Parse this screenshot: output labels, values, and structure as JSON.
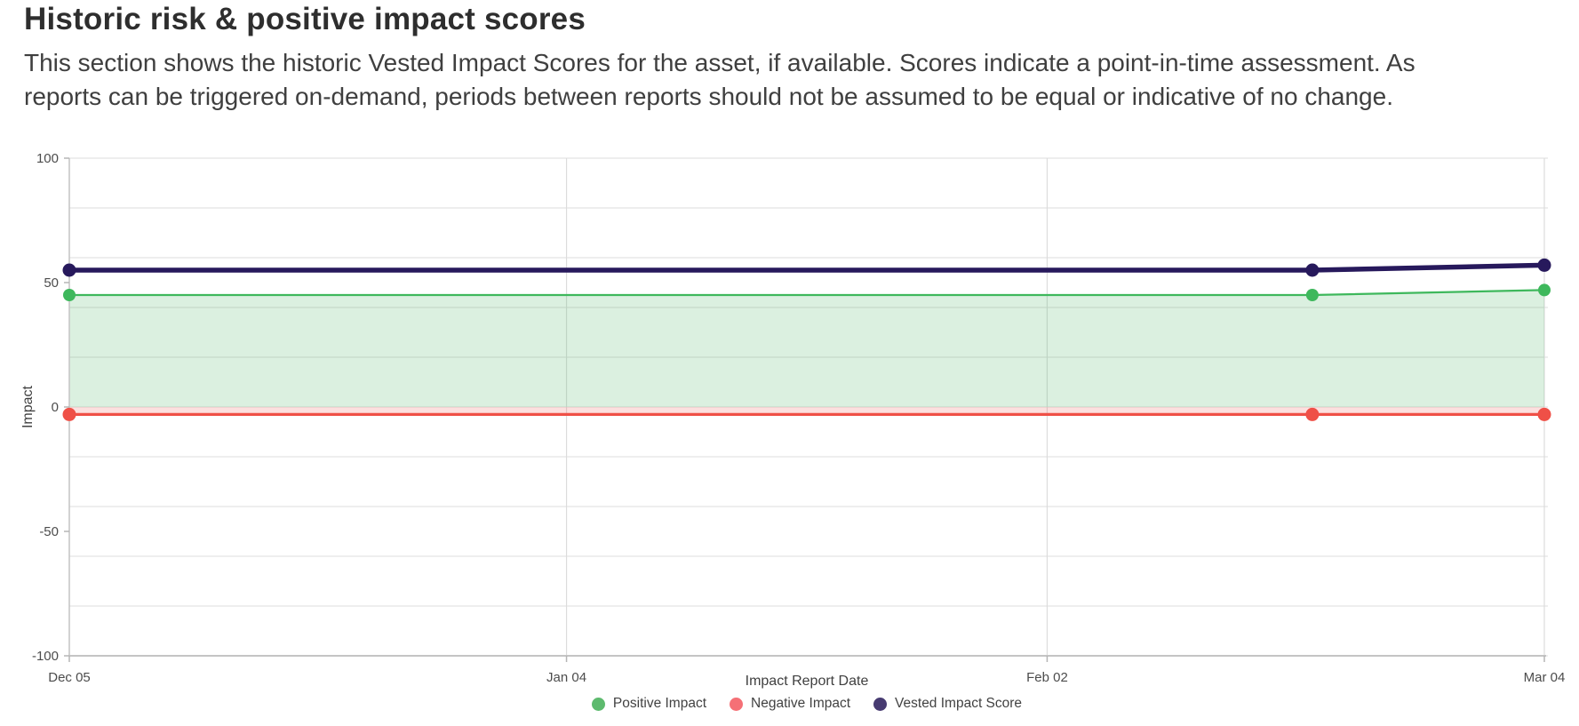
{
  "header": {
    "title": "Historic risk & positive impact scores",
    "description_line1": "This section shows the historic Vested Impact Scores for the asset, if available. Scores indicate a point-in-time assessment. As",
    "description_line2": "reports can be triggered on-demand, periods between reports should not be assumed to be equal or indicative of no change."
  },
  "colors": {
    "background": "#ffffff",
    "title_text": "#2e2e2e",
    "body_text": "#3f3f3f",
    "axis_text": "#4c4c4c",
    "axis_title_text": "#3f3f3f",
    "grid_horizontal": "#e4e4e4",
    "grid_vertical": "#dcdcdc",
    "axis_line": "#c4c4c4",
    "tick_mark": "#b5b5b5"
  },
  "chart_data": {
    "type": "line",
    "title": "",
    "xlabel": "Impact Report Date",
    "ylabel": "Impact",
    "ylim": [
      -100,
      100
    ],
    "grid": true,
    "grid_step_y": 20,
    "y_tick_values": [
      100,
      50,
      0,
      -50,
      -100
    ],
    "y_tick_labels": [
      "100",
      "50",
      "0",
      "-50",
      "-100"
    ],
    "x_max_day": 89,
    "x_ticks": [
      {
        "label": "Dec 05",
        "day": 0
      },
      {
        "label": "Jan 04",
        "day": 30
      },
      {
        "label": "Feb 02",
        "day": 59
      },
      {
        "label": "Mar 04",
        "day": 89
      }
    ],
    "legend_position": "bottom",
    "series": [
      {
        "name": "Positive Impact",
        "color": "#3eb85c",
        "legend_color": "#5dba6e",
        "area_fill": "rgba(93,186,112,0.22)",
        "area_baseline": 0,
        "line_width": 2.2,
        "dot_radius": 7,
        "points": [
          {
            "day": 0,
            "value": 45
          },
          {
            "day": 75,
            "value": 45
          },
          {
            "day": 89,
            "value": 47
          }
        ]
      },
      {
        "name": "Negative Impact",
        "color": "#ef5047",
        "legend_color": "#f57076",
        "area_fill": "rgba(240,84,76,0.18)",
        "area_baseline": 0,
        "line_width": 3.2,
        "dot_radius": 7.5,
        "points": [
          {
            "day": 0,
            "value": -3
          },
          {
            "day": 75,
            "value": -3
          },
          {
            "day": 89,
            "value": -3
          }
        ]
      },
      {
        "name": "Vested Impact Score",
        "color": "#27195c",
        "legend_color": "#473b71",
        "area_fill": null,
        "area_baseline": null,
        "line_width": 5.5,
        "dot_radius": 7.5,
        "points": [
          {
            "day": 0,
            "value": 55
          },
          {
            "day": 75,
            "value": 55
          },
          {
            "day": 89,
            "value": 57
          }
        ]
      }
    ]
  }
}
